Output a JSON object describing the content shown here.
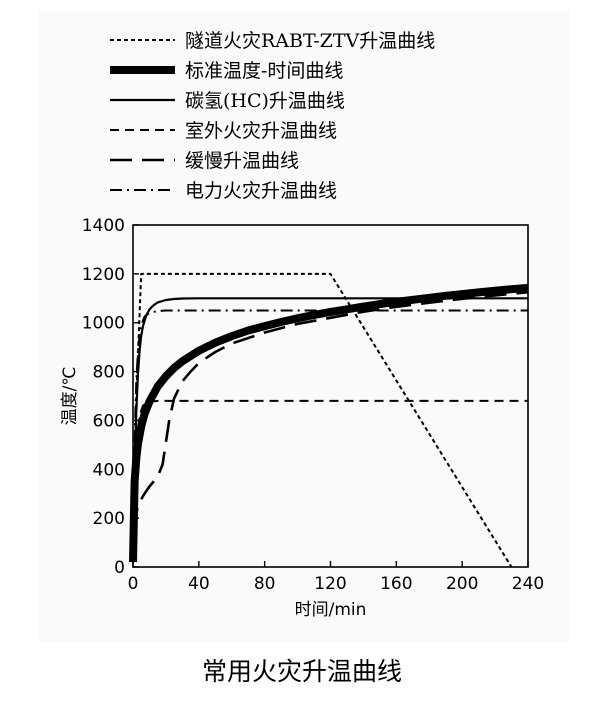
{
  "caption": "常用火灾升温曲线",
  "chart_data": {
    "type": "line",
    "title": "",
    "xlabel": "时间/min",
    "ylabel": "温度/℃",
    "xlim": [
      0,
      240
    ],
    "ylim": [
      0,
      1400
    ],
    "xticks": [
      "0",
      "40",
      "80",
      "120",
      "160",
      "200",
      "240"
    ],
    "yticks": [
      "0",
      "200",
      "400",
      "600",
      "800",
      "1000",
      "1200",
      "1400"
    ],
    "grid": false,
    "legend_position": "top, above plot",
    "series": [
      {
        "name": "隧道火灾RABT-ZTV升温曲线",
        "style": "dotted-dense",
        "width": 2,
        "x": [
          0,
          2,
          5,
          120,
          230
        ],
        "y": [
          20,
          700,
          1200,
          1200,
          0
        ]
      },
      {
        "name": "标准温度-时间曲线",
        "style": "solid",
        "width": 8,
        "x": [
          0,
          1,
          2,
          3,
          5,
          7,
          10,
          15,
          20,
          25,
          30,
          40,
          50,
          60,
          70,
          80,
          90,
          100,
          110,
          120,
          130,
          140,
          150,
          160,
          170,
          180,
          190,
          200,
          210,
          220,
          230,
          240
        ],
        "y": [
          20,
          349,
          445,
          502,
          576,
          626,
          678,
          739,
          781,
          815,
          842,
          885,
          918,
          945,
          968,
          986,
          1003,
          1018,
          1032,
          1044,
          1055,
          1066,
          1076,
          1085,
          1094,
          1102,
          1110,
          1117,
          1124,
          1131,
          1137,
          1143
        ]
      },
      {
        "name": "碳氢(HC)升温曲线",
        "style": "solid",
        "width": 2.2,
        "x": [
          0,
          1,
          2,
          3,
          4,
          5,
          6,
          8,
          10,
          12,
          15,
          20,
          25,
          30,
          40,
          60,
          80,
          120,
          160,
          200,
          240
        ],
        "y": [
          20,
          390,
          634,
          788,
          885,
          946,
          985,
          1030,
          1054,
          1069,
          1083,
          1093,
          1097,
          1099,
          1100,
          1100,
          1100,
          1100,
          1100,
          1100,
          1100
        ]
      },
      {
        "name": "室外火灾升温曲线",
        "style": "dashed",
        "width": 2,
        "x": [
          0,
          1,
          2,
          4,
          6,
          8,
          10,
          15,
          20,
          25,
          30,
          60,
          120,
          240
        ],
        "y": [
          20,
          320,
          490,
          620,
          660,
          672,
          676,
          680,
          680,
          680,
          680,
          680,
          680,
          680
        ]
      },
      {
        "name": "缓慢升温曲线",
        "style": "long-dash",
        "width": 2.6,
        "x": [
          0,
          1,
          3,
          6,
          10,
          15,
          18,
          20,
          22,
          25,
          30,
          35,
          40,
          50,
          60,
          80,
          100,
          120,
          140,
          160,
          180,
          200,
          220,
          240
        ],
        "y": [
          20,
          180,
          250,
          290,
          330,
          370,
          420,
          510,
          600,
          690,
          760,
          800,
          835,
          880,
          915,
          960,
          995,
          1020,
          1045,
          1065,
          1082,
          1098,
          1112,
          1125
        ]
      },
      {
        "name": "电力火灾升温曲线",
        "style": "dash-dot",
        "width": 2,
        "x": [
          0,
          1,
          2,
          3,
          4,
          5,
          7,
          10,
          15,
          20,
          30,
          60,
          120,
          240
        ],
        "y": [
          20,
          520,
          760,
          880,
          950,
          990,
          1025,
          1040,
          1048,
          1050,
          1050,
          1050,
          1050,
          1050
        ]
      }
    ]
  }
}
